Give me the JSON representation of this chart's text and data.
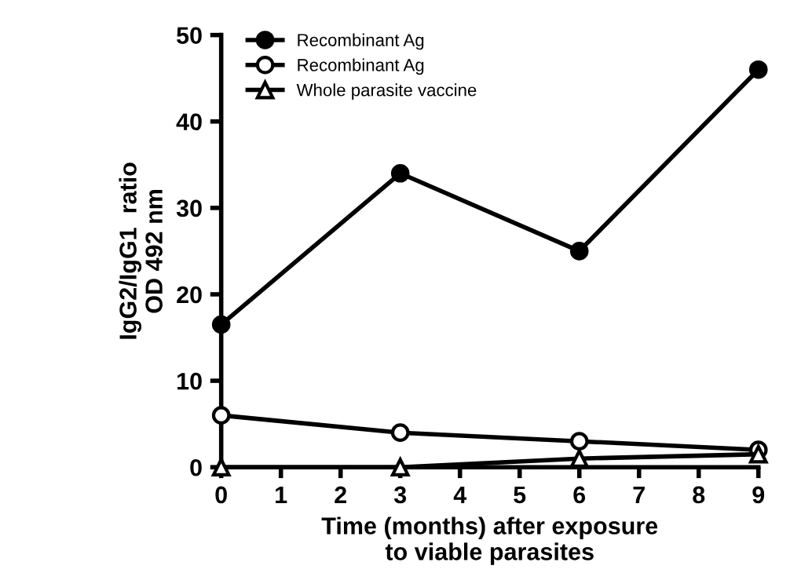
{
  "chart_data": {
    "type": "line",
    "xlabel": "Time (months) after exposure\nto viable parasites",
    "ylabel": "IgG2/IgG1  ratio\nOD 492 nm",
    "xlim": [
      0,
      9
    ],
    "xticks": [
      0,
      1,
      2,
      3,
      4,
      5,
      6,
      7,
      8,
      9
    ],
    "ylim": [
      0,
      50
    ],
    "yticks": [
      0,
      10,
      20,
      30,
      40,
      50
    ],
    "grid": false,
    "legend": "top left",
    "series": [
      {
        "name": "Recombinant Ag",
        "color": "#000000",
        "marker": "circle",
        "x": [
          0,
          3,
          6,
          9
        ],
        "values": [
          16.5,
          34,
          25,
          46
        ]
      },
      {
        "name": "Recombinant Ag",
        "color": "#000000",
        "marker": "circle",
        "x": [
          0,
          3,
          6,
          9
        ],
        "values": [
          6,
          4,
          3,
          2
        ]
      },
      {
        "name": "Whole parasite vaccine",
        "color": "#000000",
        "marker": "triangle",
        "x": [
          0,
          3,
          6,
          9
        ],
        "values": [
          0,
          0,
          1,
          1.5
        ]
      }
    ]
  }
}
